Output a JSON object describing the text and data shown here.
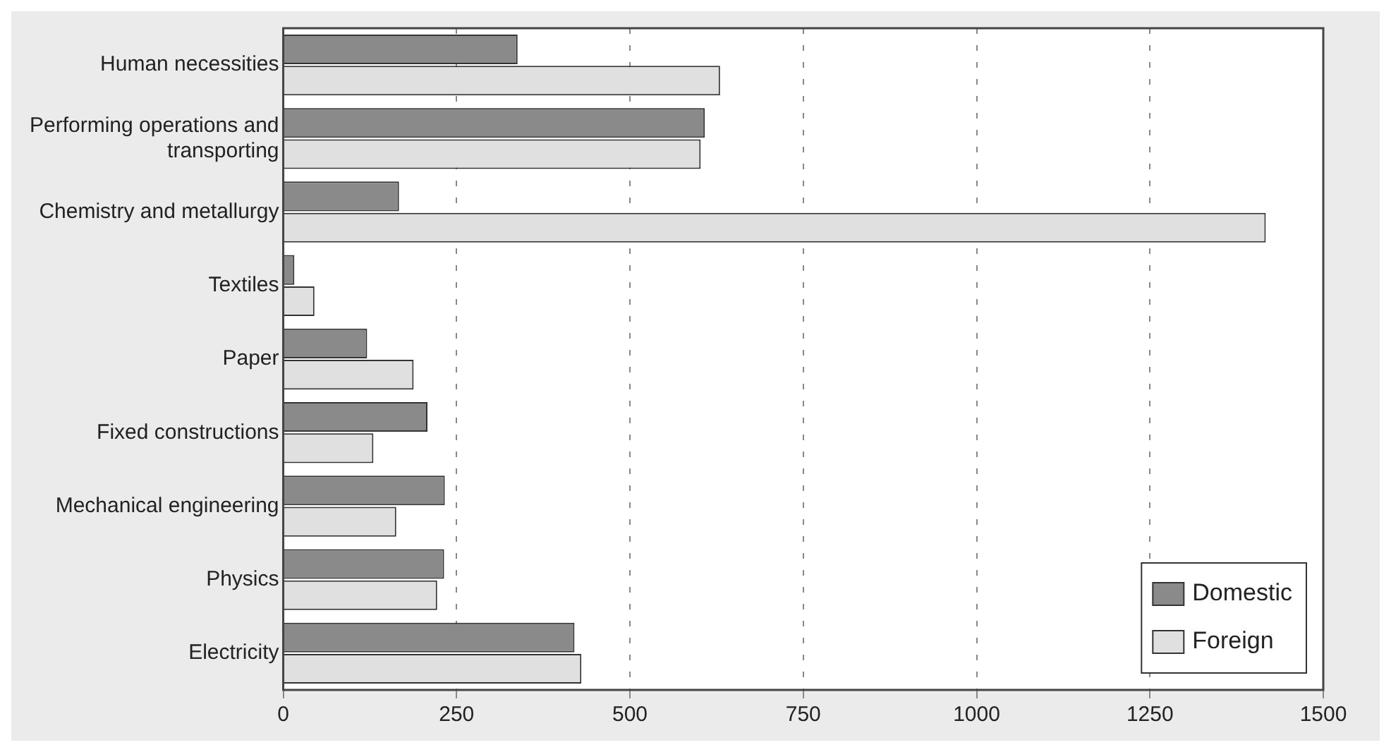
{
  "chart_data": {
    "type": "bar",
    "orientation": "horizontal",
    "categories": [
      "Human necessities",
      "Performing operations and transporting",
      "Chemistry and metallurgy",
      "Textiles",
      "Paper",
      "Fixed constructions",
      "Mechanical engineering",
      "Physics",
      "Electricity"
    ],
    "series": [
      {
        "name": "Domestic",
        "color": "#8a8a8a",
        "values": [
          338,
          608,
          167,
          16,
          121,
          208,
          233,
          232,
          420
        ]
      },
      {
        "name": "Foreign",
        "color": "#e0e0e0",
        "values": [
          630,
          602,
          1417,
          45,
          188,
          130,
          163,
          222,
          430
        ]
      }
    ],
    "xlim": [
      0,
      1500
    ],
    "xticks": [
      0,
      250,
      500,
      750,
      1000,
      1250,
      1500
    ],
    "grid": "x",
    "legend": "bottom right"
  }
}
